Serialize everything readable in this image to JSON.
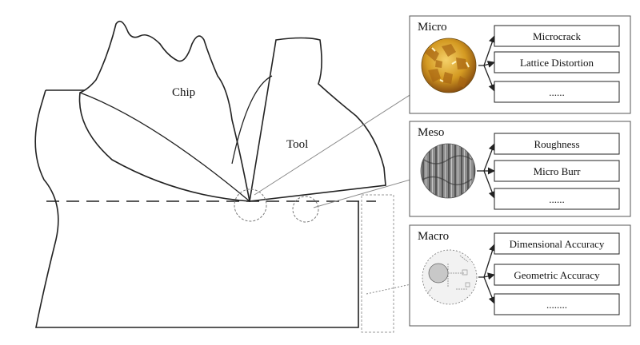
{
  "diagram": {
    "chip_label": "Chip",
    "tool_label": "Tool",
    "panels": [
      {
        "id": "micro",
        "title": "Micro",
        "items": [
          "Microcrack",
          "Lattice Distortion",
          "......"
        ],
        "image": "micro-grain-texture"
      },
      {
        "id": "meso",
        "title": "Meso",
        "items": [
          "Roughness",
          "Micro Burr",
          "......"
        ],
        "image": "meso-surface-texture"
      },
      {
        "id": "macro",
        "title": "Macro",
        "items": [
          "Dimensional Accuracy",
          "Geometric Accuracy",
          "........"
        ],
        "image": "macro-workpiece-sketch"
      }
    ],
    "colors": {
      "line": "#222222",
      "dashed_guide": "#8a8a8a",
      "panel_border": "#555555",
      "micro_image": "#d49a22",
      "meso_image": "#8c8c8c",
      "macro_image": "#c8c8c8"
    }
  }
}
